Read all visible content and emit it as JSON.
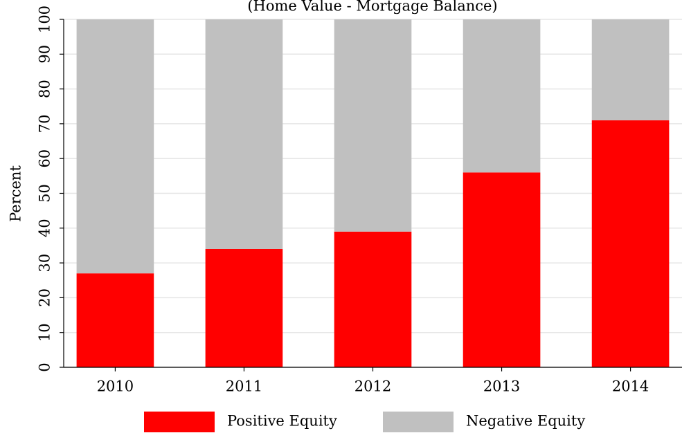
{
  "chart_data": {
    "type": "stacked_bar",
    "subtitle": "(Home Value - Mortgage Balance)",
    "ylabel": "Percent",
    "categories": [
      "2010",
      "2011",
      "2012",
      "2013",
      "2014"
    ],
    "series": [
      {
        "name": "Positive Equity",
        "color": "#ff0000",
        "values": [
          27,
          34,
          39,
          56,
          71
        ]
      },
      {
        "name": "Negative Equity",
        "color": "#c0c0c0",
        "values": [
          73,
          66,
          61,
          44,
          29
        ]
      }
    ],
    "ylim": [
      0,
      100
    ],
    "yticks": [
      0,
      10,
      20,
      30,
      40,
      50,
      60,
      70,
      80,
      90,
      100
    ],
    "grid": true,
    "legend": "bottom"
  }
}
